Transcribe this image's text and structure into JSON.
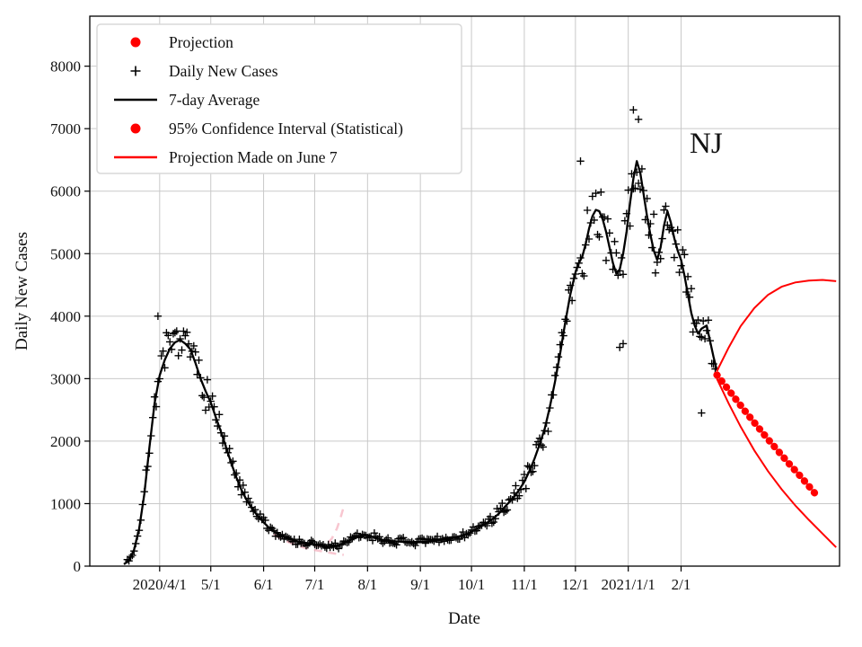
{
  "chart_data": {
    "type": "line",
    "annotation": "NJ",
    "xlabel": "Date",
    "ylabel": "Daily New Cases",
    "x_unit": "days since 2020-03-01",
    "xlim": [
      -10,
      430
    ],
    "ylim": [
      0,
      8800
    ],
    "grid": true,
    "y_ticks": [
      0,
      1000,
      2000,
      3000,
      4000,
      5000,
      6000,
      7000,
      8000
    ],
    "x_ticks": [
      {
        "day": 31,
        "label": "2020/4/1"
      },
      {
        "day": 61,
        "label": "5/1"
      },
      {
        "day": 92,
        "label": "6/1"
      },
      {
        "day": 122,
        "label": "7/1"
      },
      {
        "day": 153,
        "label": "8/1"
      },
      {
        "day": 184,
        "label": "9/1"
      },
      {
        "day": 214,
        "label": "10/1"
      },
      {
        "day": 245,
        "label": "11/1"
      },
      {
        "day": 275,
        "label": "12/1"
      },
      {
        "day": 306,
        "label": "2021/1/1"
      },
      {
        "day": 337,
        "label": "2/1"
      }
    ],
    "colors": {
      "line": "#000000",
      "red": "#ff0000",
      "faded": "#f4a0b0",
      "grid": "#c9c9c9"
    },
    "legend": [
      {
        "label": "Projection",
        "marker": "dot",
        "color": "#ff0000"
      },
      {
        "label": "Daily New Cases",
        "marker": "plus",
        "color": "#000000"
      },
      {
        "label": "7-day Average",
        "marker": "line",
        "color": "#000000"
      },
      {
        "label": "95% Confidence Interval (Statistical)",
        "marker": "dot",
        "color": "#ff0000"
      },
      {
        "label": "Projection Made on June 7",
        "marker": "line",
        "color": "#ff0000"
      }
    ],
    "series": {
      "avg7": {
        "name": "7-day Average",
        "points": [
          [
            10,
            30
          ],
          [
            13,
            90
          ],
          [
            16,
            260
          ],
          [
            19,
            600
          ],
          [
            22,
            1150
          ],
          [
            25,
            1900
          ],
          [
            28,
            2600
          ],
          [
            31,
            3050
          ],
          [
            34,
            3300
          ],
          [
            37,
            3480
          ],
          [
            40,
            3580
          ],
          [
            43,
            3620
          ],
          [
            46,
            3560
          ],
          [
            49,
            3470
          ],
          [
            52,
            3250
          ],
          [
            55,
            3000
          ],
          [
            58,
            2800
          ],
          [
            61,
            2620
          ],
          [
            64,
            2380
          ],
          [
            67,
            2150
          ],
          [
            70,
            1900
          ],
          [
            73,
            1650
          ],
          [
            76,
            1420
          ],
          [
            79,
            1220
          ],
          [
            82,
            1060
          ],
          [
            85,
            930
          ],
          [
            88,
            820
          ],
          [
            92,
            700
          ],
          [
            95,
            620
          ],
          [
            98,
            560
          ],
          [
            101,
            510
          ],
          [
            104,
            470
          ],
          [
            107,
            440
          ],
          [
            110,
            410
          ],
          [
            113,
            390
          ],
          [
            116,
            375
          ],
          [
            119,
            360
          ],
          [
            122,
            350
          ],
          [
            125,
            330
          ],
          [
            128,
            315
          ],
          [
            131,
            310
          ],
          [
            134,
            320
          ],
          [
            137,
            345
          ],
          [
            140,
            380
          ],
          [
            143,
            420
          ],
          [
            146,
            450
          ],
          [
            149,
            480
          ],
          [
            152,
            500
          ],
          [
            155,
            480
          ],
          [
            158,
            450
          ],
          [
            161,
            425
          ],
          [
            164,
            410
          ],
          [
            167,
            400
          ],
          [
            170,
            395
          ],
          [
            173,
            390
          ],
          [
            176,
            385
          ],
          [
            179,
            382
          ],
          [
            182,
            380
          ],
          [
            185,
            385
          ],
          [
            188,
            392
          ],
          [
            191,
            400
          ],
          [
            194,
            412
          ],
          [
            197,
            425
          ],
          [
            200,
            438
          ],
          [
            203,
            452
          ],
          [
            206,
            470
          ],
          [
            209,
            495
          ],
          [
            212,
            525
          ],
          [
            215,
            565
          ],
          [
            218,
            610
          ],
          [
            221,
            660
          ],
          [
            224,
            710
          ],
          [
            227,
            770
          ],
          [
            230,
            840
          ],
          [
            233,
            930
          ],
          [
            236,
            1020
          ],
          [
            239,
            1110
          ],
          [
            242,
            1220
          ],
          [
            245,
            1350
          ],
          [
            248,
            1520
          ],
          [
            251,
            1720
          ],
          [
            254,
            1950
          ],
          [
            257,
            2200
          ],
          [
            260,
            2550
          ],
          [
            263,
            2950
          ],
          [
            266,
            3400
          ],
          [
            269,
            3900
          ],
          [
            272,
            4350
          ],
          [
            275,
            4700
          ],
          [
            277,
            4850
          ],
          [
            279,
            4950
          ],
          [
            281,
            5150
          ],
          [
            283,
            5400
          ],
          [
            285,
            5600
          ],
          [
            287,
            5700
          ],
          [
            289,
            5680
          ],
          [
            291,
            5550
          ],
          [
            293,
            5350
          ],
          [
            295,
            5100
          ],
          [
            297,
            4850
          ],
          [
            299,
            4680
          ],
          [
            301,
            4750
          ],
          [
            303,
            5000
          ],
          [
            305,
            5350
          ],
          [
            307,
            5800
          ],
          [
            309,
            6200
          ],
          [
            311,
            6480
          ],
          [
            313,
            6300
          ],
          [
            315,
            5950
          ],
          [
            317,
            5600
          ],
          [
            319,
            5300
          ],
          [
            321,
            5050
          ],
          [
            323,
            4900
          ],
          [
            325,
            5100
          ],
          [
            327,
            5450
          ],
          [
            329,
            5680
          ],
          [
            331,
            5500
          ],
          [
            333,
            5250
          ],
          [
            335,
            5050
          ],
          [
            337,
            4900
          ],
          [
            339,
            4650
          ],
          [
            341,
            4350
          ],
          [
            343,
            4050
          ],
          [
            345,
            3850
          ],
          [
            347,
            3720
          ],
          [
            349,
            3800
          ],
          [
            352,
            3850
          ],
          [
            354,
            3600
          ],
          [
            356,
            3350
          ],
          [
            358,
            3130
          ]
        ]
      },
      "scatter": {
        "name": "Daily New Cases",
        "generate_from": "avg7",
        "cv": 0.12,
        "abs_noise": 45,
        "seed": 7,
        "day_range": [
          12,
          357
        ],
        "outliers": [
          [
            30,
            4000
          ],
          [
            278,
            6480
          ],
          [
            301,
            3500
          ],
          [
            303,
            3560
          ],
          [
            309,
            7300
          ],
          [
            312,
            7150
          ],
          [
            349,
            2450
          ]
        ]
      },
      "projection": {
        "name": "Projection",
        "points": [
          [
            358,
            3060
          ],
          [
            364,
            2850
          ],
          [
            370,
            2640
          ],
          [
            376,
            2430
          ],
          [
            382,
            2230
          ],
          [
            388,
            2030
          ],
          [
            394,
            1840
          ],
          [
            400,
            1650
          ],
          [
            406,
            1470
          ],
          [
            412,
            1280
          ],
          [
            416,
            1150
          ]
        ]
      },
      "ci_upper": {
        "name": "95% Confidence Interval (Statistical) upper",
        "points": [
          [
            358,
            3120
          ],
          [
            365,
            3500
          ],
          [
            372,
            3840
          ],
          [
            380,
            4130
          ],
          [
            388,
            4340
          ],
          [
            396,
            4470
          ],
          [
            404,
            4540
          ],
          [
            412,
            4570
          ],
          [
            420,
            4580
          ],
          [
            428,
            4560
          ]
        ]
      },
      "ci_lower": {
        "name": "95% Confidence Interval (Statistical) lower",
        "points": [
          [
            358,
            3000
          ],
          [
            365,
            2600
          ],
          [
            372,
            2230
          ],
          [
            380,
            1850
          ],
          [
            388,
            1520
          ],
          [
            396,
            1230
          ],
          [
            404,
            970
          ],
          [
            412,
            740
          ],
          [
            420,
            520
          ],
          [
            428,
            300
          ]
        ]
      },
      "june7_projection": {
        "name": "Projection Made on June 7",
        "branches": [
          [
            [
              98,
              510
            ],
            [
              104,
              430
            ],
            [
              110,
              375
            ],
            [
              116,
              340
            ],
            [
              122,
              320
            ],
            [
              126,
              318
            ],
            [
              129,
              350
            ],
            [
              132,
              440
            ],
            [
              135,
              600
            ],
            [
              137,
              760
            ],
            [
              139,
              950
            ]
          ],
          [
            [
              98,
              500
            ],
            [
              104,
              415
            ],
            [
              110,
              345
            ],
            [
              116,
              295
            ],
            [
              122,
              258
            ],
            [
              128,
              228
            ],
            [
              134,
              200
            ],
            [
              139,
              180
            ]
          ]
        ]
      }
    }
  }
}
